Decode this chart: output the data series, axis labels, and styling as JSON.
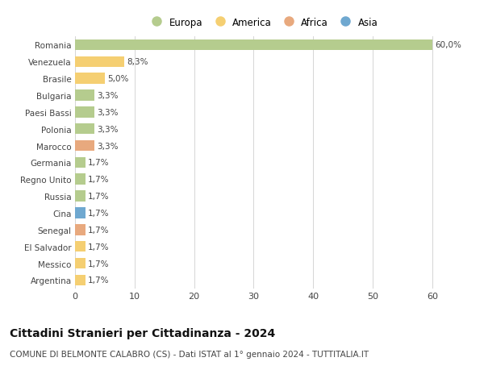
{
  "countries": [
    "Romania",
    "Venezuela",
    "Brasile",
    "Bulgaria",
    "Paesi Bassi",
    "Polonia",
    "Marocco",
    "Germania",
    "Regno Unito",
    "Russia",
    "Cina",
    "Senegal",
    "El Salvador",
    "Messico",
    "Argentina"
  ],
  "values": [
    60.0,
    8.3,
    5.0,
    3.3,
    3.3,
    3.3,
    3.3,
    1.7,
    1.7,
    1.7,
    1.7,
    1.7,
    1.7,
    1.7,
    1.7
  ],
  "labels": [
    "60,0%",
    "8,3%",
    "5,0%",
    "3,3%",
    "3,3%",
    "3,3%",
    "3,3%",
    "1,7%",
    "1,7%",
    "1,7%",
    "1,7%",
    "1,7%",
    "1,7%",
    "1,7%",
    "1,7%"
  ],
  "continent": [
    "Europa",
    "America",
    "America",
    "Europa",
    "Europa",
    "Europa",
    "Africa",
    "Europa",
    "Europa",
    "Europa",
    "Asia",
    "Africa",
    "America",
    "America",
    "America"
  ],
  "colors": {
    "Europa": "#b5cc8e",
    "America": "#f5cf72",
    "Africa": "#e8a97e",
    "Asia": "#6fa8d0"
  },
  "legend_order": [
    "Europa",
    "America",
    "Africa",
    "Asia"
  ],
  "title": "Cittadini Stranieri per Cittadinanza - 2024",
  "subtitle": "COMUNE DI BELMONTE CALABRO (CS) - Dati ISTAT al 1° gennaio 2024 - TUTTITALIA.IT",
  "xlim": [
    0,
    63
  ],
  "xticks": [
    0,
    10,
    20,
    30,
    40,
    50,
    60
  ],
  "bg_color": "#ffffff",
  "grid_color": "#d5d5d5",
  "bar_height": 0.65,
  "label_fontsize": 7.5,
  "ytick_fontsize": 7.5,
  "xtick_fontsize": 8,
  "title_fontsize": 10,
  "subtitle_fontsize": 7.5,
  "legend_fontsize": 8.5
}
